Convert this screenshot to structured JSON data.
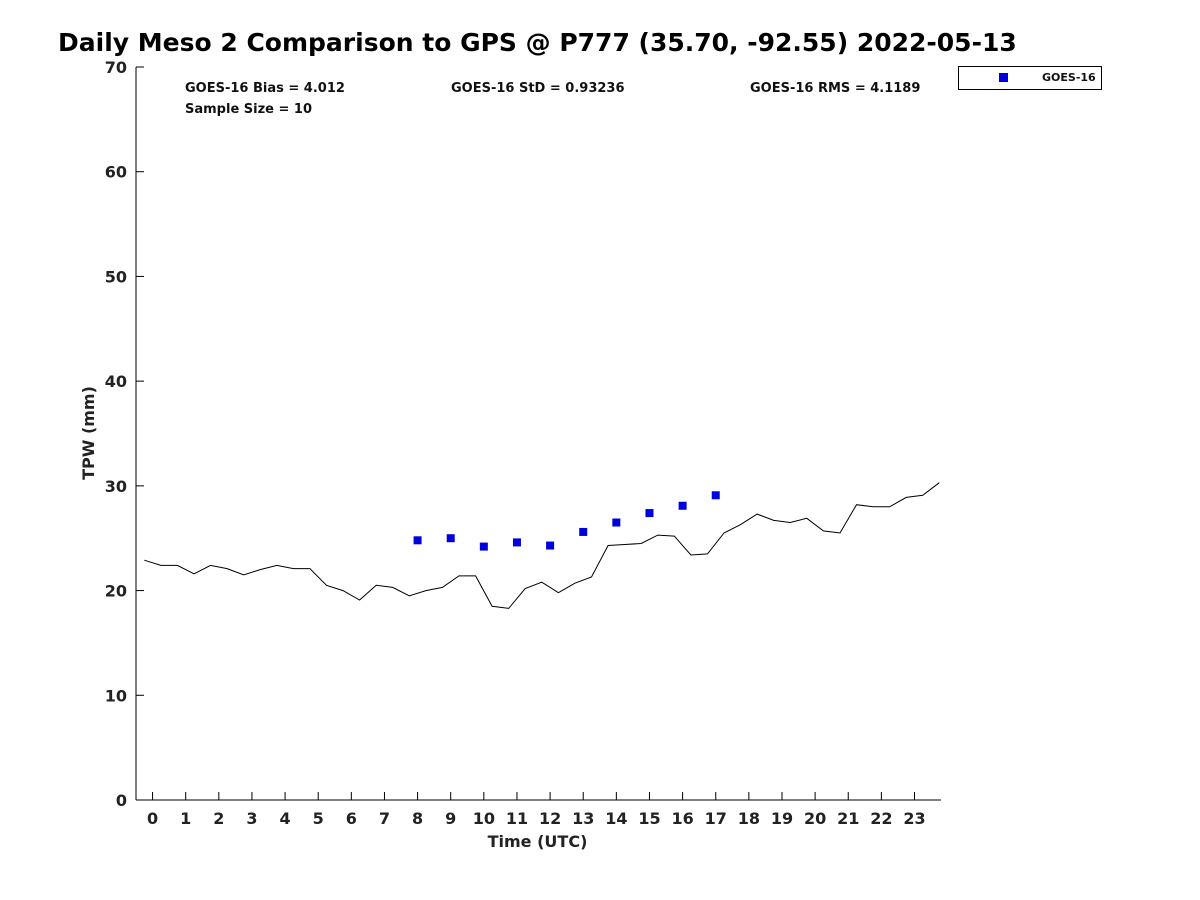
{
  "chart_data": {
    "type": "line",
    "title": "Daily Meso 2 Comparison to GPS @ P777 (35.70, -92.55) 2022-05-13",
    "xlabel": "Time (UTC)",
    "ylabel": "TPW (mm)",
    "xlim": [
      -0.5,
      23.8
    ],
    "ylim": [
      0,
      70
    ],
    "x_ticks": [
      "0",
      "1",
      "2",
      "3",
      "4",
      "5",
      "6",
      "7",
      "8",
      "9",
      "10",
      "11",
      "12",
      "13",
      "14",
      "15",
      "16",
      "17",
      "18",
      "19",
      "20",
      "21",
      "22",
      "23"
    ],
    "y_ticks": [
      "0",
      "10",
      "20",
      "30",
      "40",
      "50",
      "60",
      "70"
    ],
    "grid": false,
    "legend": {
      "location": "top-right",
      "entries": [
        "GOES-16"
      ]
    },
    "stats": {
      "bias": "GOES-16 Bias = 4.012",
      "std": "GOES-16 StD = 0.93236",
      "rms": "GOES-16 RMS = 4.1189",
      "sample": "Sample Size = 10"
    },
    "series": [
      {
        "kind": "line",
        "color": "#000000",
        "x": [
          -0.25,
          0.25,
          0.75,
          1.25,
          1.75,
          2.25,
          2.75,
          3.25,
          3.75,
          4.25,
          4.75,
          5.25,
          5.75,
          6.25,
          6.75,
          7.25,
          7.75,
          8.25,
          8.75,
          9.25,
          9.75,
          10.25,
          10.75,
          11.25,
          11.75,
          12.25,
          12.75,
          13.25,
          13.75,
          14.25,
          14.75,
          15.25,
          15.75,
          16.25,
          16.75,
          17.25,
          17.75,
          18.25,
          18.75,
          19.25,
          19.75,
          20.25,
          20.75,
          21.25,
          21.75,
          22.25,
          22.75,
          23.25,
          23.75
        ],
        "values": [
          22.9,
          22.4,
          22.4,
          21.6,
          22.4,
          22.1,
          21.5,
          22.0,
          22.4,
          22.1,
          22.1,
          20.5,
          20.0,
          19.1,
          20.5,
          20.3,
          19.5,
          20.0,
          20.3,
          21.4,
          21.4,
          18.5,
          18.3,
          20.2,
          20.8,
          19.8,
          20.7,
          21.3,
          24.3,
          24.4,
          24.5,
          25.3,
          25.2,
          23.4,
          23.5,
          25.5,
          26.3,
          27.3,
          26.7,
          26.5,
          26.9,
          25.7,
          25.5,
          28.2,
          28.0,
          28.0,
          28.9,
          29.1,
          30.3
        ]
      },
      {
        "name": "GOES-16",
        "kind": "scatter",
        "color": "#0000dd",
        "x": [
          8,
          9,
          10,
          11,
          12,
          13,
          14,
          15,
          16,
          17
        ],
        "values": [
          24.8,
          25.0,
          24.2,
          24.6,
          24.3,
          25.6,
          26.5,
          27.4,
          28.1,
          29.1
        ]
      }
    ]
  }
}
